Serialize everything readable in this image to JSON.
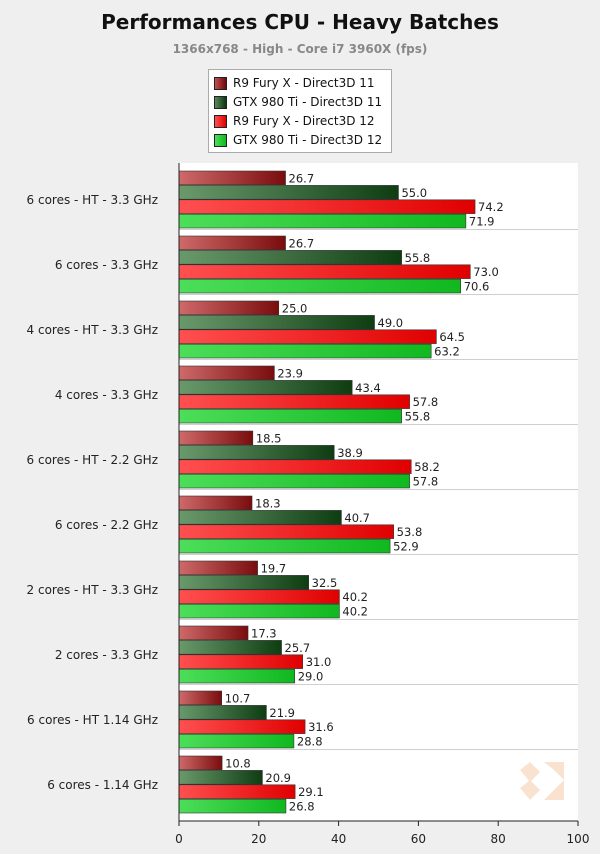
{
  "chart_data": {
    "type": "bar",
    "orientation": "horizontal",
    "title": "Performances CPU - Heavy Batches",
    "subtitle": "1366x768 - High - Core i7 3960X (fps)",
    "categories": [
      "6 cores - HT - 3.3 GHz",
      "6 cores - 3.3 GHz",
      "4 cores - HT - 3.3 GHz",
      "4 cores - 3.3 GHz",
      "6 cores - HT - 2.2 GHz",
      "6 cores - 2.2 GHz",
      "2 cores - HT - 3.3 GHz",
      "2 cores - 3.3 GHz",
      "6 cores - HT 1.14 GHz",
      "6 cores - 1.14 GHz"
    ],
    "series": [
      {
        "name": "R9 Fury X - Direct3D 11",
        "color_dark": "#7a0c0c",
        "color_light": "#cf6a6a",
        "values": [
          26.7,
          26.7,
          25.0,
          23.9,
          18.5,
          18.3,
          19.7,
          17.3,
          10.7,
          10.8
        ]
      },
      {
        "name": "GTX 980 Ti - Direct3D 11",
        "color_dark": "#0e3d12",
        "color_light": "#6a9a6c",
        "values": [
          55.0,
          55.8,
          49.0,
          43.4,
          38.9,
          40.7,
          32.5,
          25.7,
          21.9,
          20.9
        ]
      },
      {
        "name": "R9 Fury X - Direct3D 12",
        "color_dark": "#e00000",
        "color_light": "#ff5050",
        "values": [
          74.2,
          73.0,
          64.5,
          57.8,
          58.2,
          53.8,
          40.2,
          31.0,
          31.6,
          29.1
        ]
      },
      {
        "name": "GTX 980 Ti - Direct3D 12",
        "color_dark": "#10b81f",
        "color_light": "#4dde5a",
        "values": [
          71.9,
          70.6,
          63.2,
          55.8,
          57.8,
          52.9,
          40.2,
          29.0,
          28.8,
          26.8
        ]
      }
    ],
    "xlim": [
      0,
      100
    ],
    "xticks": [
      0,
      20,
      40,
      60,
      80,
      100
    ],
    "grid": false,
    "legend_position": "top-center"
  }
}
